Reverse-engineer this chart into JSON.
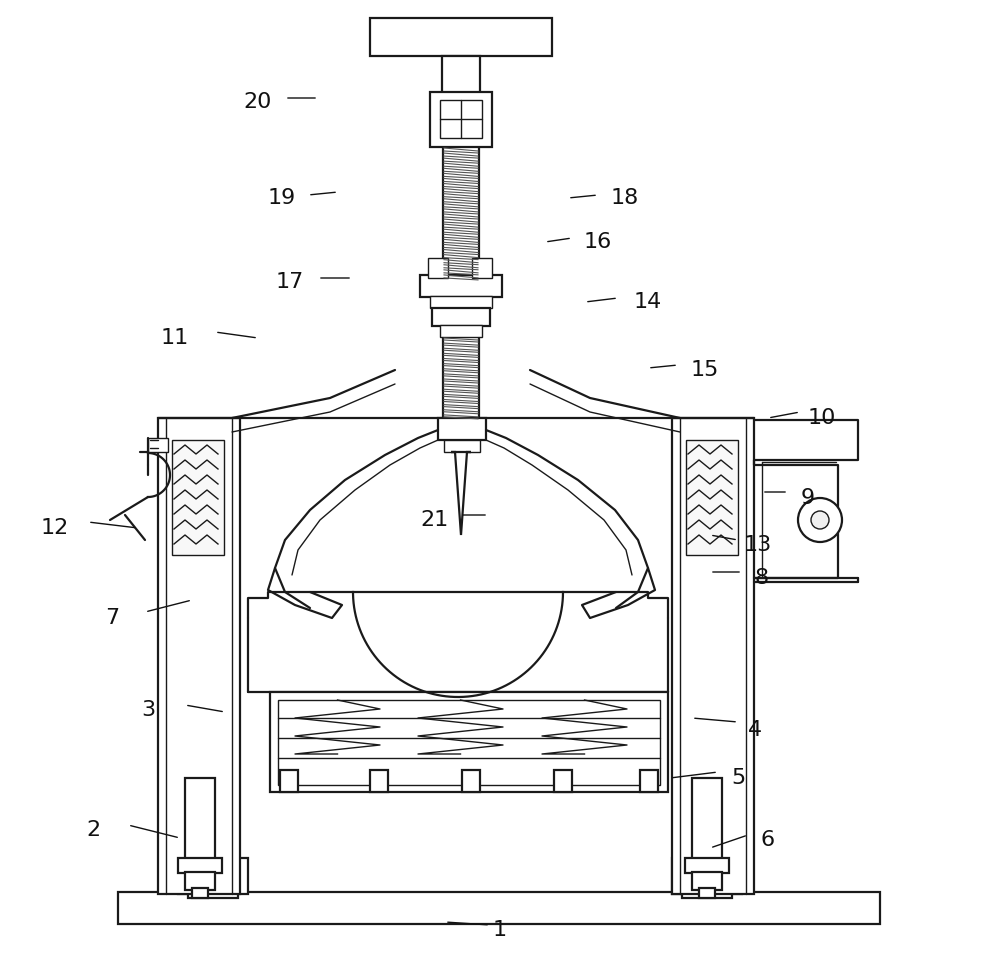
{
  "bg_color": "white",
  "line_color": "#1a1a1a",
  "lw": 1.6,
  "lt": 1.0,
  "label_fontsize": 16,
  "labels": [
    [
      "1",
      500,
      930
    ],
    [
      "2",
      93,
      830
    ],
    [
      "3",
      148,
      710
    ],
    [
      "4",
      755,
      730
    ],
    [
      "5",
      738,
      778
    ],
    [
      "6",
      768,
      840
    ],
    [
      "7",
      112,
      618
    ],
    [
      "8",
      762,
      578
    ],
    [
      "9",
      808,
      498
    ],
    [
      "10",
      822,
      418
    ],
    [
      "11",
      175,
      338
    ],
    [
      "12",
      55,
      528
    ],
    [
      "13",
      758,
      545
    ],
    [
      "14",
      648,
      302
    ],
    [
      "15",
      705,
      370
    ],
    [
      "16",
      598,
      242
    ],
    [
      "17",
      290,
      282
    ],
    [
      "18",
      625,
      198
    ],
    [
      "19",
      282,
      198
    ],
    [
      "20",
      258,
      102
    ],
    [
      "21",
      435,
      520
    ]
  ],
  "leaders": [
    [
      "1",
      490,
      925,
      445,
      922
    ],
    [
      "2",
      128,
      825,
      180,
      838
    ],
    [
      "3",
      185,
      705,
      225,
      712
    ],
    [
      "4",
      738,
      722,
      692,
      718
    ],
    [
      "5",
      718,
      772,
      670,
      778
    ],
    [
      "6",
      748,
      835,
      710,
      848
    ],
    [
      "7",
      145,
      612,
      192,
      600
    ],
    [
      "8",
      742,
      572,
      710,
      572
    ],
    [
      "9",
      788,
      492,
      762,
      492
    ],
    [
      "10",
      800,
      412,
      768,
      418
    ],
    [
      "11",
      215,
      332,
      258,
      338
    ],
    [
      "12",
      88,
      522,
      138,
      528
    ],
    [
      "13",
      738,
      540,
      710,
      535
    ],
    [
      "14",
      618,
      298,
      585,
      302
    ],
    [
      "15",
      678,
      365,
      648,
      368
    ],
    [
      "16",
      572,
      238,
      545,
      242
    ],
    [
      "17",
      318,
      278,
      352,
      278
    ],
    [
      "18",
      598,
      195,
      568,
      198
    ],
    [
      "19",
      308,
      195,
      338,
      192
    ],
    [
      "20",
      285,
      98,
      318,
      98
    ],
    [
      "21",
      460,
      515,
      488,
      515
    ]
  ]
}
